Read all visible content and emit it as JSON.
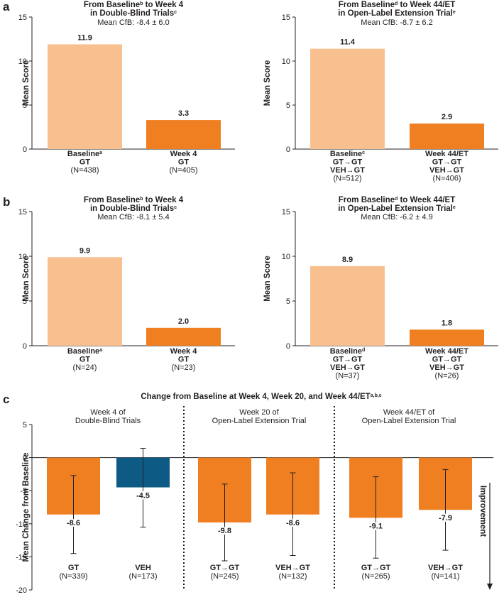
{
  "colors": {
    "light": "#f9c08f",
    "dark": "#f07f22",
    "blue": "#0d5b84",
    "axis": "#231f20",
    "text": "#231f20"
  },
  "chart_data": [
    {
      "id": "a-left",
      "panel_label": "a",
      "type": "bar",
      "title_line1": "From Baseline",
      "title_sup1": "b",
      "title_line1b": " to Week 4",
      "title_line2": "in Double-Blind Trials",
      "title_sup2": "c",
      "subtitle": "Mean CfB: -8.4 ± 6.0",
      "ylabel": "Mean Score",
      "ylim": [
        0,
        15
      ],
      "yticks": [
        0,
        5,
        10,
        15
      ],
      "bars": [
        {
          "value": 11.9,
          "label": "11.9",
          "color": "light",
          "cat_lines": [
            {
              "text": "Baseline",
              "sup": "a"
            },
            {
              "text": "GT"
            }
          ],
          "n": "(N=438)"
        },
        {
          "value": 3.3,
          "label": "3.3",
          "color": "dark",
          "cat_lines": [
            {
              "text": "Week 4"
            },
            {
              "text": "GT"
            }
          ],
          "n": "(N=405)"
        }
      ]
    },
    {
      "id": "a-right",
      "type": "bar",
      "title_line1": "From Baseline",
      "title_sup1": "d",
      "title_line1b": " to Week 44/ET",
      "title_line2": "in Open-Label Extension Trial",
      "title_sup2": "e",
      "subtitle": "Mean CfB: -8.7 ± 6.2",
      "ylabel": "Mean Score",
      "ylim": [
        0,
        15
      ],
      "yticks": [
        0,
        5,
        10,
        15
      ],
      "bars": [
        {
          "value": 11.4,
          "label": "11.4",
          "color": "light",
          "cat_lines": [
            {
              "text": "Baseline",
              "sup": "c"
            },
            {
              "text": "GT→GT"
            },
            {
              "text": "VEH→GT"
            }
          ],
          "n": "(N=512)"
        },
        {
          "value": 2.9,
          "label": "2.9",
          "color": "dark",
          "cat_lines": [
            {
              "text": "Week 44/ET"
            },
            {
              "text": "GT→GT"
            },
            {
              "text": "VEH→GT"
            }
          ],
          "n": "(N=406)"
        }
      ]
    },
    {
      "id": "b-left",
      "panel_label": "b",
      "type": "bar",
      "title_line1": "From Baseline",
      "title_sup1": "b",
      "title_line1b": " to Week 4",
      "title_line2": "in Double-Blind Trials",
      "title_sup2": "c",
      "subtitle": "Mean CfB: -8.1 ± 5.4",
      "ylabel": "Mean Score",
      "ylim": [
        0,
        15
      ],
      "yticks": [
        0,
        5,
        10,
        15
      ],
      "bars": [
        {
          "value": 9.9,
          "label": "9.9",
          "color": "light",
          "cat_lines": [
            {
              "text": "Baseline",
              "sup": "a"
            },
            {
              "text": "GT"
            }
          ],
          "n": "(N=24)"
        },
        {
          "value": 2.0,
          "label": "2.0",
          "color": "dark",
          "cat_lines": [
            {
              "text": "Week 4"
            },
            {
              "text": "GT"
            }
          ],
          "n": "(N=23)"
        }
      ]
    },
    {
      "id": "b-right",
      "type": "bar",
      "title_line1": "From Baseline",
      "title_sup1": "d",
      "title_line1b": " to Week 44/ET",
      "title_line2": "in Open-Label Extension Trial",
      "title_sup2": "e",
      "subtitle": "Mean CfB: -6.2 ± 4.9",
      "ylabel": "Mean Score",
      "ylim": [
        0,
        15
      ],
      "yticks": [
        0,
        5,
        10,
        15
      ],
      "bars": [
        {
          "value": 8.9,
          "label": "8.9",
          "color": "light",
          "cat_lines": [
            {
              "text": "Baseline",
              "sup": "d"
            },
            {
              "text": "GT→GT"
            },
            {
              "text": "VEH→GT"
            }
          ],
          "n": "(N=37)"
        },
        {
          "value": 1.8,
          "label": "1.8",
          "color": "dark",
          "cat_lines": [
            {
              "text": "Week 44/ET"
            },
            {
              "text": "GT→GT"
            },
            {
              "text": "VEH→GT"
            }
          ],
          "n": "(N=26)"
        }
      ]
    },
    {
      "id": "c",
      "panel_label": "c",
      "type": "bar",
      "title": "Change from Baseline at Week 4, Week 20, and Week 44/ET",
      "title_sup": "a,b,c",
      "ylabel": "Mean Change from Baseline",
      "ylim": [
        -20,
        5
      ],
      "yticks": [
        5,
        0,
        -5,
        -10,
        -15,
        -20
      ],
      "improvement_label": "Improvement",
      "groups": [
        {
          "lines": [
            "Week 4 of",
            "Double-Blind Trials"
          ]
        },
        {
          "lines": [
            "Week 20 of",
            "Open-Label Extension Trial"
          ]
        },
        {
          "lines": [
            "Week 44/ET of",
            "Open-Label Extension Trial"
          ]
        }
      ],
      "bars": [
        {
          "group": 0,
          "category": "GT",
          "n": "(N=339)",
          "value": -8.6,
          "label": "-8.6",
          "error_low": -14.5,
          "error_high": -2.7,
          "color": "dark"
        },
        {
          "group": 0,
          "category": "VEH",
          "n": "(N=173)",
          "value": -4.5,
          "label": "-4.5",
          "error_low": -10.5,
          "error_high": 1.4,
          "color": "blue"
        },
        {
          "group": 1,
          "category": "GT→GT",
          "n": "(N=245)",
          "value": -9.8,
          "label": "-9.8",
          "error_low": -15.6,
          "error_high": -4.0,
          "color": "dark"
        },
        {
          "group": 1,
          "category": "VEH→GT",
          "n": "(N=132)",
          "value": -8.6,
          "label": "-8.6",
          "error_low": -14.8,
          "error_high": -2.3,
          "color": "dark"
        },
        {
          "group": 2,
          "category": "GT→GT",
          "n": "(N=265)",
          "value": -9.1,
          "label": "-9.1",
          "error_low": -15.2,
          "error_high": -2.9,
          "color": "dark"
        },
        {
          "group": 2,
          "category": "VEH→GT",
          "n": "(N=141)",
          "value": -7.9,
          "label": "-7.9",
          "error_low": -14.0,
          "error_high": -1.8,
          "color": "dark"
        }
      ]
    }
  ]
}
